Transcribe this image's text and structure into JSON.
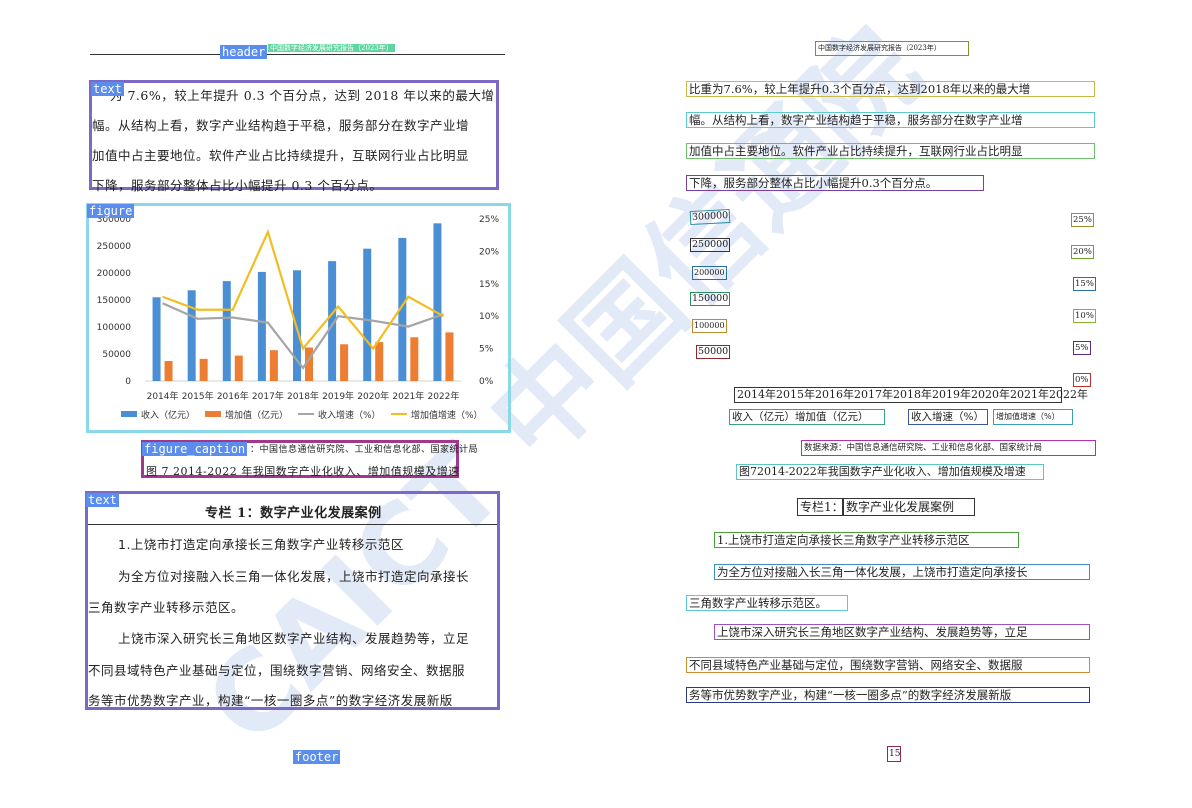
{
  "layout_tags": {
    "header": "header",
    "text1": "text",
    "figure": "figure",
    "figure_caption": "figure_caption",
    "text2": "text",
    "footer": "footer"
  },
  "left": {
    "header_text": "中国数字经济发展研究报告（2023年）",
    "para1": [
      "为 7.6%，较上年提升 0.3 个百分点，达到 2018 年以来的最大增",
      "幅。从结构上看，数字产业结构趋于平稳，服务部分在数字产业增",
      "加值中占主要地位。软件产业占比持续提升，互联网行业占比明显",
      "下降，服务部分整体占比小幅提升 0.3 个百分点。"
    ],
    "source": "：中国信息通信研究院、工业和信息化部、国家统计局",
    "caption": "图 7 2014-2022 年我国数字产业化收入、增加值规模及增速",
    "box_title": "专栏 1：数字产业化发展案例",
    "box_lines": [
      "1.上饶市打造定向承接长三角数字产业转移示范区",
      "为全方位对接融入长三角一体化发展，上饶市打造定向承接长",
      "三角数字产业转移示范区。",
      "上饶市深入研究长三角地区数字产业结构、发展趋势等，立足",
      "不同县域特色产业基础与定位，围绕数字营销、网络安全、数据服",
      "务等市优势数字产业，构建“一核一圈多点”的数字经济发展新版"
    ],
    "watermark": "CAICT 中国信通院"
  },
  "right": {
    "header_text": "中国数字经济发展研究报告（2023年）",
    "para1": [
      "比重为7.6%，较上年提升0.3个百分点，达到2018年以来的最大增",
      "幅。从结构上看，数字产业结构趋于平稳，服务部分在数字产业增",
      "加值中占主要地位。软件产业占比持续提升，互联网行业占比明显",
      "下降，服务部分整体占比小幅提升0.3个百分点。"
    ],
    "y_left": [
      "300000",
      "250000",
      "200000",
      "150000",
      "100000",
      "50000"
    ],
    "y_right": [
      "25%",
      "20%",
      "15%",
      "10%",
      "5%",
      "0%"
    ],
    "x_years": "2014年2015年2016年2017年2018年2019年2020年2021年2022年",
    "legend_a": "收入（亿元）增加值（亿元）",
    "legend_b": "收入增速（%）",
    "legend_c": "增加值增速（%）",
    "source": "数据来源：中国信息通信研究院、工业和信息化部、国家统计局",
    "caption": "图72014-2022年我国数字产业化收入、增加值规模及增速",
    "box_title_a": "专栏1：",
    "box_title_b": "数字产业化发展案例",
    "box_lines": [
      "1.上饶市打造定向承接长三角数字产业转移示范区",
      "为全方位对接融入长三角一体化发展，上饶市打造定向承接长",
      "三角数字产业转移示范区。",
      "上饶市深入研究长三角地区数字产业结构、发展趋势等，立足",
      "不同县域特色产业基础与定位，围绕数字营销、网络安全、数据服",
      "务等市优势数字产业，构建“一核一圈多点”的数字经济发展新版"
    ],
    "page_number": "15"
  },
  "chart_data": {
    "type": "bar",
    "categories": [
      "2014年",
      "2015年",
      "2016年",
      "2017年",
      "2018年",
      "2019年",
      "2020年",
      "2021年",
      "2022年"
    ],
    "series": [
      {
        "name": "收入（亿元）",
        "type": "bar",
        "axis": "left",
        "color": "#4a8fd4",
        "values": [
          155000,
          168000,
          185000,
          202000,
          205000,
          222000,
          245000,
          265000,
          292000
        ]
      },
      {
        "name": "增加值（亿元）",
        "type": "bar",
        "axis": "left",
        "color": "#ed7d31",
        "values": [
          37000,
          41000,
          47000,
          57000,
          62000,
          68000,
          72000,
          81000,
          90000
        ]
      },
      {
        "name": "收入增速（%）",
        "type": "line",
        "axis": "right",
        "color": "#a5a5a5",
        "values": [
          12.0,
          9.6,
          9.8,
          9.0,
          2.0,
          10.0,
          9.3,
          8.4,
          10.3
        ]
      },
      {
        "name": "增加值增速（%）",
        "type": "line",
        "axis": "right",
        "color": "#f2bd22",
        "values": [
          13.0,
          11.0,
          11.0,
          23.0,
          5.0,
          11.5,
          5.0,
          13.0,
          10.0
        ]
      }
    ],
    "y_left_ticks": [
      "300000",
      "250000",
      "200000",
      "150000",
      "100000",
      "50000",
      "0"
    ],
    "y_right_ticks": [
      "25%",
      "20%",
      "15%",
      "10%",
      "5%",
      "0%"
    ],
    "ylim_left": [
      0,
      300000
    ],
    "ylim_right": [
      0,
      25
    ],
    "legend_position": "bottom",
    "grid": false
  }
}
